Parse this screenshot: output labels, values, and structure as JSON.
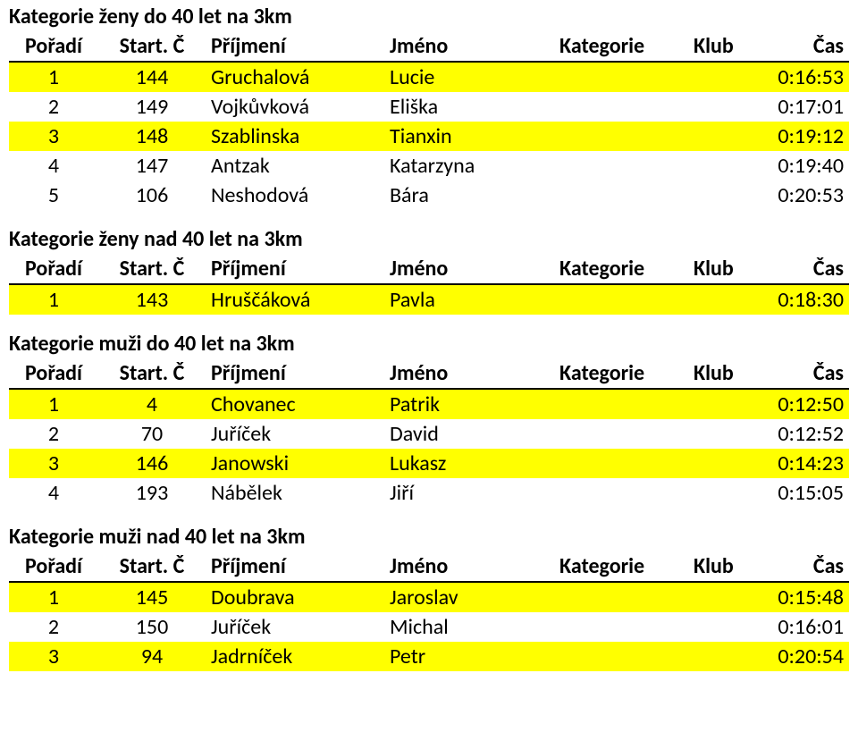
{
  "colors": {
    "highlight": "#ffff00",
    "plain": "#ffffff",
    "text": "#000000",
    "border": "#000000"
  },
  "columns": {
    "poradi": "Pořadí",
    "start": "Start. Č",
    "prijmeni": "Příjmení",
    "jmeno": "Jméno",
    "kategorie": "Kategorie",
    "klub": "Klub",
    "cas": "Čas"
  },
  "sections": [
    {
      "title": "Kategorie ženy do 40 let na 3km",
      "rows": [
        {
          "poradi": "1",
          "start": "144",
          "prijmeni": "Gruchalová",
          "jmeno": "Lucie",
          "kat": "",
          "klub": "",
          "cas": "0:16:53",
          "hl": true
        },
        {
          "poradi": "2",
          "start": "149",
          "prijmeni": "Vojkůvková",
          "jmeno": "Eliška",
          "kat": "",
          "klub": "",
          "cas": "0:17:01",
          "hl": false
        },
        {
          "poradi": "3",
          "start": "148",
          "prijmeni": "Szablinska",
          "jmeno": "Tianxin",
          "kat": "",
          "klub": "",
          "cas": "0:19:12",
          "hl": true
        },
        {
          "poradi": "4",
          "start": "147",
          "prijmeni": "Antzak",
          "jmeno": "Katarzyna",
          "kat": "",
          "klub": "",
          "cas": "0:19:40",
          "hl": false
        },
        {
          "poradi": "5",
          "start": "106",
          "prijmeni": "Neshodová",
          "jmeno": "Bára",
          "kat": "",
          "klub": "",
          "cas": "0:20:53",
          "hl": false
        }
      ]
    },
    {
      "title": "Kategorie ženy nad 40 let na 3km",
      "rows": [
        {
          "poradi": "1",
          "start": "143",
          "prijmeni": "Hruščáková",
          "jmeno": "Pavla",
          "kat": "",
          "klub": "",
          "cas": "0:18:30",
          "hl": true
        }
      ]
    },
    {
      "title": "Kategorie muži do 40 let na 3km",
      "rows": [
        {
          "poradi": "1",
          "start": "4",
          "prijmeni": "Chovanec",
          "jmeno": "Patrik",
          "kat": "",
          "klub": "",
          "cas": "0:12:50",
          "hl": true
        },
        {
          "poradi": "2",
          "start": "70",
          "prijmeni": "Juříček",
          "jmeno": "David",
          "kat": "",
          "klub": "",
          "cas": "0:12:52",
          "hl": false
        },
        {
          "poradi": "3",
          "start": "146",
          "prijmeni": "Janowski",
          "jmeno": "Lukasz",
          "kat": "",
          "klub": "",
          "cas": "0:14:23",
          "hl": true
        },
        {
          "poradi": "4",
          "start": "193",
          "prijmeni": "Nábělek",
          "jmeno": "Jiří",
          "kat": "",
          "klub": "",
          "cas": "0:15:05",
          "hl": false
        }
      ]
    },
    {
      "title": "Kategorie muži nad 40 let na 3km",
      "rows": [
        {
          "poradi": "1",
          "start": "145",
          "prijmeni": "Doubrava",
          "jmeno": "Jaroslav",
          "kat": "",
          "klub": "",
          "cas": "0:15:48",
          "hl": true
        },
        {
          "poradi": "2",
          "start": "150",
          "prijmeni": "Juříček",
          "jmeno": "Michal",
          "kat": "",
          "klub": "",
          "cas": "0:16:01",
          "hl": false
        },
        {
          "poradi": "3",
          "start": "94",
          "prijmeni": "Jadrníček",
          "jmeno": "Petr",
          "kat": "",
          "klub": "",
          "cas": "0:20:54",
          "hl": true
        }
      ]
    }
  ]
}
